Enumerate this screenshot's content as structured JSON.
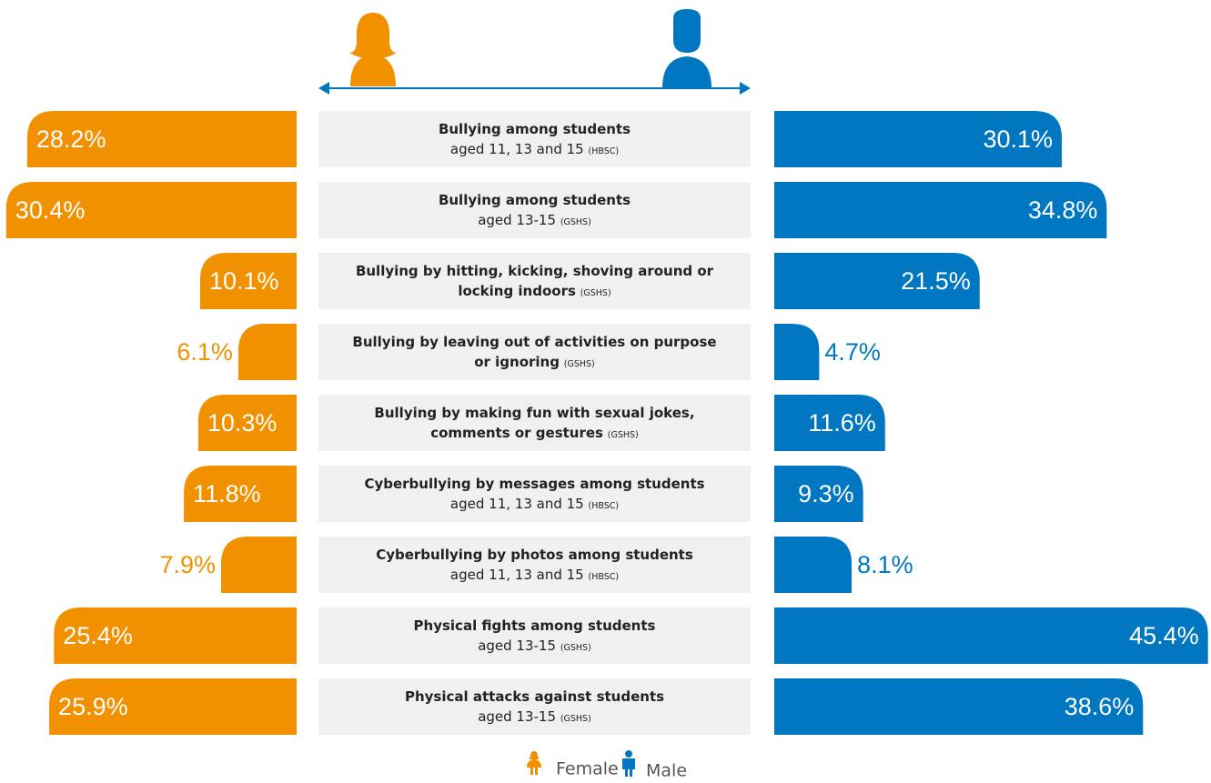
{
  "chart_data": {
    "type": "butterfly-bar",
    "categories": [
      {
        "title": [
          "Bullying among students"
        ],
        "subtitle": "aged 11, 13 and 15",
        "source": "(HBSC)"
      },
      {
        "title": [
          "Bullying among students"
        ],
        "subtitle": "aged 13-15",
        "source": "(GSHS)"
      },
      {
        "title": [
          "Bullying by hitting, kicking, shoving around or",
          "locking indoors"
        ],
        "source": "(GSHS)"
      },
      {
        "title": [
          "Bullying by leaving out of activities on purpose",
          "or ignoring"
        ],
        "source": "(GSHS)"
      },
      {
        "title": [
          "Bullying by making fun with sexual jokes,",
          "comments or gestures"
        ],
        "source": "(GSHS)"
      },
      {
        "title": [
          "Cyberbullying by messages among students"
        ],
        "subtitle": "aged 11, 13 and 15",
        "source": "(HBSC)"
      },
      {
        "title": [
          "Cyberbullying by photos among students"
        ],
        "subtitle": "aged 11, 13 and 15",
        "source": "(HBSC)"
      },
      {
        "title": [
          "Physical fights among students"
        ],
        "subtitle": "aged 13-15",
        "source": "(GSHS)"
      },
      {
        "title": [
          "Physical attacks against students"
        ],
        "subtitle": "aged 13-15",
        "source": "(GSHS)"
      }
    ],
    "series": [
      {
        "name": "Female",
        "color": "#f29100",
        "values": [
          28.2,
          30.4,
          10.1,
          6.1,
          10.3,
          11.8,
          7.9,
          25.4,
          25.9
        ],
        "value_labels": [
          "28.2%",
          "30.4%",
          "10.1%",
          "6.1%",
          "10.3%",
          "11.8%",
          "7.9%",
          "25.4%",
          "25.9%"
        ]
      },
      {
        "name": "Male",
        "color": "#0077c0",
        "values": [
          30.1,
          34.8,
          21.5,
          4.7,
          11.6,
          9.3,
          8.1,
          45.4,
          38.6
        ],
        "value_labels": [
          "30.1%",
          "34.8%",
          "21.5%",
          "4.7%",
          "11.6%",
          "9.3%",
          "8.1%",
          "45.4%",
          "38.6%"
        ]
      }
    ]
  }
}
